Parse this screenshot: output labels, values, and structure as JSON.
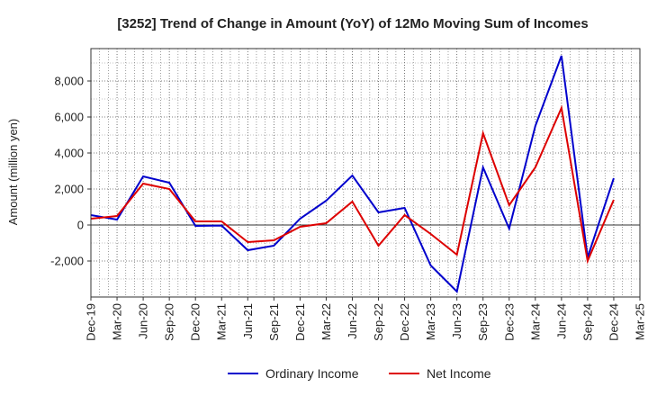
{
  "chart_data": {
    "type": "line",
    "title": "[3252]  Trend of Change in Amount (YoY) of 12Mo Moving Sum of Incomes",
    "xlabel": "",
    "ylabel": "Amount (million yen)",
    "categories": [
      "Dec-19",
      "Mar-20",
      "Jun-20",
      "Sep-20",
      "Dec-20",
      "Mar-21",
      "Jun-21",
      "Sep-21",
      "Dec-21",
      "Mar-22",
      "Jun-22",
      "Sep-22",
      "Dec-22",
      "Mar-23",
      "Jun-23",
      "Sep-23",
      "Dec-23",
      "Mar-24",
      "Jun-24",
      "Sep-24",
      "Dec-24",
      "Mar-25"
    ],
    "ylim": [
      -4000,
      9800
    ],
    "yticks": [
      -2000,
      0,
      2000,
      4000,
      6000,
      8000
    ],
    "ytick_labels": [
      "-2,000",
      "0",
      "2,000",
      "4,000",
      "6,000",
      "8,000"
    ],
    "grid": true,
    "legend_position": "bottom",
    "series": [
      {
        "name": "Ordinary Income",
        "color": "#0000cc",
        "values": [
          550,
          300,
          2700,
          2350,
          -50,
          -30,
          -1400,
          -1150,
          350,
          1350,
          2750,
          700,
          950,
          -2250,
          -3700,
          3200,
          -200,
          5500,
          9400,
          -1800,
          2600,
          null
        ]
      },
      {
        "name": "Net Income",
        "color": "#dd0000",
        "values": [
          350,
          500,
          2300,
          2000,
          200,
          200,
          -950,
          -850,
          -100,
          100,
          1300,
          -1150,
          550,
          -500,
          -1650,
          5100,
          1100,
          3200,
          6500,
          -2000,
          1400,
          null
        ]
      }
    ]
  }
}
